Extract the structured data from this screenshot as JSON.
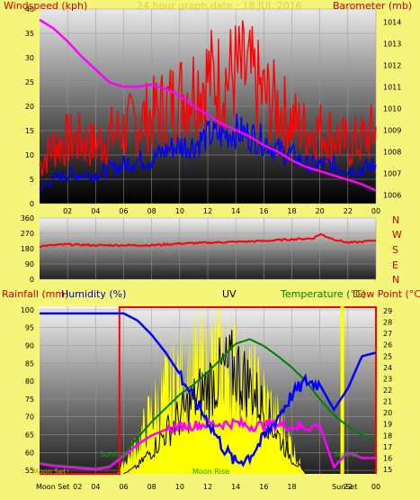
{
  "top_panel": {
    "left_title": "Windspeed (kph)",
    "right_title": "Barometer (mb)",
    "center_title": "24 hour graph date : 18 JUL 2016",
    "title_color": "#e0d040",
    "left_title_color": "#d00000",
    "right_title_color": "#d00000"
  },
  "dir_panel": {
    "compass": [
      "N",
      "W",
      "S",
      "E",
      "N"
    ]
  },
  "bottom_panel": {
    "rain_label": "Rainfall (mm)",
    "humidity_label": "Humidity (%)",
    "uv_label": "UV",
    "temp_label": "Temperature (°C)",
    "dew_label": "Dew Point (°C)",
    "sunrise": "Sunrise",
    "sunset": "Sunset",
    "moonset": "Moon Set",
    "moonrise": "Moon Rise",
    "moonset_axis": "Moon Set",
    "sunset_axis": "SunSet"
  },
  "chart_data": [
    {
      "type": "line",
      "title": "24 hour graph date : 18 JUL 2016",
      "ylabel": "Windspeed (kph)",
      "ylabel_right": "Barometer (mb)",
      "x_ticks": [
        "02",
        "04",
        "06",
        "08",
        "10",
        "12",
        "14",
        "16",
        "18",
        "20",
        "22",
        "00"
      ],
      "x_range": [
        0,
        24
      ],
      "ylim": [
        0,
        40
      ],
      "y_ticks": [
        0,
        5,
        10,
        15,
        20,
        25,
        30,
        35,
        40
      ],
      "ylim_right": [
        1005.6,
        1014.6
      ],
      "y_ticks_right": [
        1006,
        1007,
        1008,
        1009,
        1010,
        1011,
        1012,
        1013,
        1014
      ],
      "series": [
        {
          "name": "Wind gust",
          "color": "#ff0000",
          "axis": "left",
          "x": [
            0,
            1,
            2,
            3,
            4,
            5,
            6,
            7,
            8,
            9,
            10,
            11,
            12,
            13,
            14,
            15,
            16,
            17,
            18,
            19,
            20,
            21,
            22,
            23,
            24
          ],
          "y": [
            8,
            12,
            13,
            13,
            12,
            14,
            15,
            17,
            18,
            20,
            22,
            24,
            26,
            25,
            27,
            26,
            22,
            20,
            17,
            15,
            15,
            14,
            12,
            13,
            15
          ]
        },
        {
          "name": "Wind speed",
          "color": "#0000ff",
          "axis": "left",
          "x": [
            0,
            1,
            2,
            3,
            4,
            5,
            6,
            7,
            8,
            9,
            10,
            11,
            12,
            13,
            14,
            15,
            16,
            17,
            18,
            19,
            20,
            21,
            22,
            23,
            24
          ],
          "y": [
            3,
            5,
            6,
            6,
            6,
            7,
            8,
            9,
            9,
            11,
            12,
            12,
            14,
            14,
            15,
            14,
            13,
            11,
            10,
            8,
            8,
            8,
            7,
            7,
            8
          ]
        },
        {
          "name": "Barometer",
          "color": "#ff00ff",
          "axis": "right",
          "x": [
            0,
            1,
            2,
            3,
            4,
            5,
            6,
            7,
            8,
            9,
            10,
            11,
            12,
            13,
            14,
            15,
            16,
            17,
            18,
            19,
            20,
            21,
            22,
            23,
            24
          ],
          "y": [
            1014.1,
            1013.7,
            1013.1,
            1012.4,
            1011.8,
            1011.2,
            1011.0,
            1011.0,
            1011.1,
            1010.9,
            1010.6,
            1010.1,
            1009.7,
            1009.3,
            1009.0,
            1008.7,
            1008.3,
            1008.0,
            1007.6,
            1007.3,
            1007.1,
            1006.9,
            1006.7,
            1006.5,
            1006.2
          ]
        }
      ]
    },
    {
      "type": "line",
      "ylim": [
        0,
        360
      ],
      "y_ticks": [
        0,
        90,
        180,
        270,
        360
      ],
      "x_range": [
        0,
        24
      ],
      "series": [
        {
          "name": "Wind direction",
          "color": "#ff0000",
          "x": [
            0,
            2,
            4,
            6,
            8,
            10,
            12,
            14,
            16,
            18,
            19.5,
            20,
            21,
            22,
            23,
            24
          ],
          "y": [
            195,
            205,
            200,
            200,
            200,
            210,
            215,
            220,
            225,
            235,
            240,
            265,
            235,
            215,
            220,
            230
          ]
        }
      ]
    },
    {
      "type": "line",
      "x_ticks": [
        "02",
        "04",
        "06",
        "08",
        "10",
        "12",
        "14",
        "16",
        "18",
        "20",
        "22",
        "00"
      ],
      "x_range": [
        0,
        24
      ],
      "ylim": [
        54,
        101
      ],
      "y_ticks": [
        55,
        60,
        65,
        70,
        75,
        80,
        85,
        90,
        95,
        100
      ],
      "ylim_right": [
        14.6,
        29.4
      ],
      "y_ticks_right": [
        15,
        16,
        17,
        18,
        19,
        20,
        21,
        22,
        23,
        24,
        25,
        26,
        27,
        28,
        29
      ],
      "series": [
        {
          "name": "Humidity (%)",
          "color": "#0000ff",
          "axis": "left",
          "x": [
            0,
            1,
            2,
            3,
            4,
            5,
            6,
            7,
            8,
            9,
            10,
            11,
            12,
            13,
            14,
            15,
            16,
            17,
            18,
            19,
            20,
            21,
            22,
            23,
            24
          ],
          "y": [
            99,
            99,
            99,
            99,
            99,
            99,
            99,
            97,
            93,
            88,
            82,
            75,
            69,
            62,
            57,
            59,
            64,
            70,
            76,
            80,
            79,
            72,
            78,
            87,
            88
          ]
        },
        {
          "name": "Temperature (°C)",
          "color": "#008000",
          "axis": "right",
          "x": [
            0,
            1,
            2,
            3,
            4,
            5,
            6,
            7,
            8,
            9,
            10,
            11,
            12,
            13,
            14,
            15,
            16,
            17,
            18,
            19,
            20,
            21,
            22,
            23,
            24
          ],
          "y": [
            15.6,
            15.4,
            15.3,
            15.2,
            15.1,
            15.3,
            16.3,
            17.8,
            19.2,
            20.4,
            21.6,
            22.5,
            23.6,
            24.8,
            26.1,
            26.5,
            25.9,
            25.0,
            24.0,
            22.8,
            21.2,
            19.8,
            18.8,
            18.0,
            17.8
          ]
        },
        {
          "name": "Dew Point (°C)",
          "color": "#ff00ff",
          "axis": "right",
          "x": [
            0,
            1,
            2,
            3,
            4,
            5,
            6,
            7,
            8,
            9,
            10,
            11,
            12,
            13,
            14,
            15,
            16,
            17,
            18,
            19,
            20,
            21,
            22,
            23,
            24
          ],
          "y": [
            15.5,
            15.3,
            15.2,
            15.1,
            15.0,
            15.2,
            16.2,
            17.2,
            18.0,
            18.5,
            18.8,
            18.9,
            19.0,
            19.0,
            19.1,
            18.8,
            18.9,
            19.0,
            18.8,
            18.7,
            18.9,
            15.2,
            16.5,
            16.0,
            16.0
          ]
        },
        {
          "name": "UV",
          "color": "#ffff00",
          "axis": "uv",
          "x": [
            0,
            5.5,
            6,
            7,
            8,
            9,
            10,
            11,
            12,
            13,
            14,
            15,
            16,
            17,
            18,
            18.5,
            19,
            24
          ],
          "y": [
            0,
            0,
            0.5,
            1.5,
            3.0,
            4.0,
            4.8,
            5.2,
            5.5,
            5.6,
            5.2,
            4.5,
            3.6,
            2.6,
            1.4,
            0.6,
            0,
            0
          ]
        },
        {
          "name": "Solar",
          "color": "#000000",
          "axis": "uv",
          "x": [
            0,
            6,
            7,
            8,
            9,
            10,
            11,
            12,
            13,
            14,
            15,
            16,
            17,
            18,
            19,
            24
          ],
          "y": [
            0,
            0,
            0.3,
            0.9,
            1.6,
            2.2,
            2.8,
            3.4,
            3.9,
            4.1,
            3.4,
            2.5,
            1.5,
            0.6,
            0,
            0
          ]
        },
        {
          "name": "Rainfall (mm)",
          "color": "#ff0000",
          "axis": "rain",
          "x": [
            0,
            5.7,
            5.7,
            24,
            24
          ],
          "y": [
            0,
            0,
            1,
            1,
            0
          ]
        }
      ],
      "daylight": {
        "sunrise": 5.5,
        "sunset": 21.6,
        "moonrise": 12.8,
        "moonset": 0.5
      }
    }
  ]
}
